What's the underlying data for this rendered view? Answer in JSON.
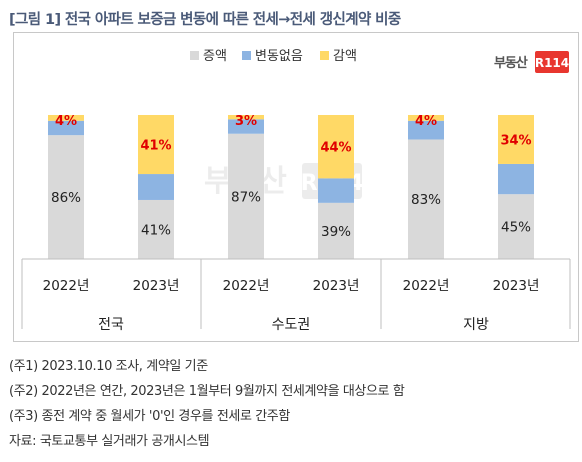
{
  "title": "[그림 1] 전국 아파트 보증금 변동에 따른 전세→전세 갱신계약 비중",
  "logo_text": "부동산",
  "logo_mark": "R114",
  "watermark_text": "부동산",
  "watermark_mark": "R114",
  "colors": {
    "increase": "#d9d9d9",
    "no_change": "#8db4e2",
    "decrease": "#ffd966",
    "decrease_label": "#e00000",
    "logo_red": "#e8362f",
    "title": "#4a5a78"
  },
  "chart_data": {
    "type": "bar",
    "stacked": true,
    "normalized": true,
    "legend_position": "top",
    "categories": [
      {
        "year": "2022년",
        "group": "전국"
      },
      {
        "year": "2023년",
        "group": "전국"
      },
      {
        "year": "2022년",
        "group": "수도권"
      },
      {
        "year": "2023년",
        "group": "수도권"
      },
      {
        "year": "2022년",
        "group": "지방"
      },
      {
        "year": "2023년",
        "group": "지방"
      }
    ],
    "groups": [
      "전국",
      "수도권",
      "지방"
    ],
    "series": [
      {
        "name": "증액",
        "values": [
          86,
          41,
          87,
          39,
          83,
          45
        ],
        "labels": [
          "86%",
          "41%",
          "87%",
          "39%",
          "83%",
          "45%"
        ]
      },
      {
        "name": "변동없음",
        "values": [
          10,
          18,
          10,
          17,
          13,
          21
        ]
      },
      {
        "name": "감액",
        "values": [
          4,
          41,
          3,
          44,
          4,
          34
        ],
        "labels": [
          "4%",
          "41%",
          "3%",
          "44%",
          "4%",
          "34%"
        ]
      }
    ],
    "ylim": [
      0,
      100
    ]
  },
  "notes": [
    "(주1) 2023.10.10 조사, 계약일 기준",
    "(주2) 2022년은 연간, 2023년은 1월부터 9월까지 전세계약을 대상으로 함",
    "(주3) 종전 계약 중 월세가 '0'인 경우를 전세로 간주함",
    "자료: 국토교통부 실거래가 공개시스템"
  ]
}
